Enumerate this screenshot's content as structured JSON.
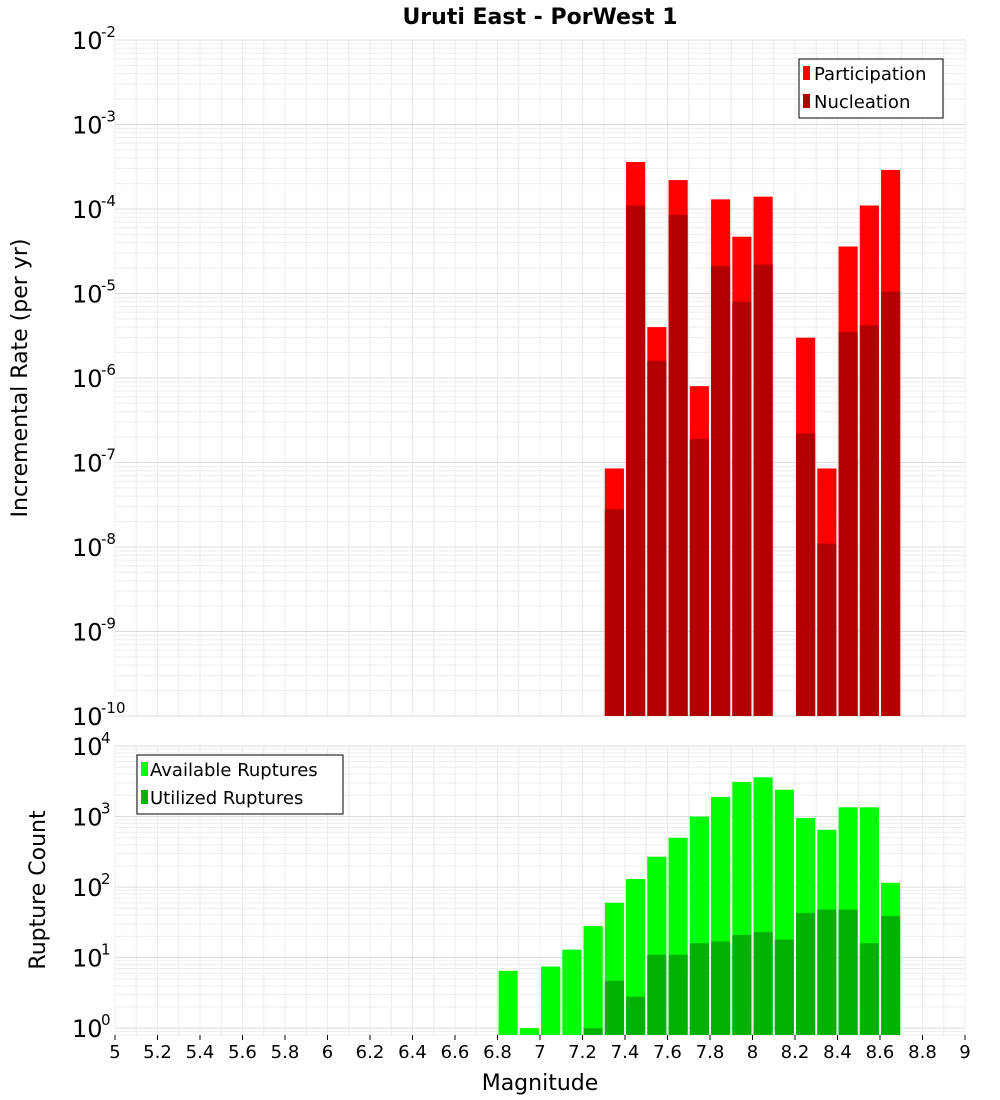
{
  "chart_data": [
    {
      "type": "bar",
      "title": "Uruti East - PorWest 1",
      "ylabel": "Incremental Rate (per yr)",
      "xlabel": "",
      "yscale": "log",
      "ylim": [
        1e-10,
        0.01
      ],
      "xlim": [
        5,
        9
      ],
      "grid": true,
      "legend_position": "top-right",
      "bar_width": 0.09,
      "series": [
        {
          "name": "Participation",
          "color": "#ff0000",
          "x": [
            7.35,
            7.45,
            7.55,
            7.65,
            7.75,
            7.85,
            7.95,
            8.05,
            8.25,
            8.35,
            8.45,
            8.55,
            8.65
          ],
          "values": [
            8.5e-08,
            0.00036,
            4e-06,
            0.00022,
            8e-07,
            0.00013,
            4.7e-05,
            0.00014,
            3e-06,
            8.5e-08,
            3.6e-05,
            0.00011,
            0.00029
          ]
        },
        {
          "name": "Nucleation",
          "color": "#b20000",
          "x": [
            7.35,
            7.45,
            7.55,
            7.65,
            7.75,
            7.85,
            7.95,
            8.05,
            8.25,
            8.35,
            8.45,
            8.55,
            8.65
          ],
          "values": [
            2.8e-08,
            0.00011,
            1.6e-06,
            8.5e-05,
            1.9e-07,
            2.1e-05,
            8e-06,
            2.2e-05,
            2.2e-07,
            1.1e-08,
            3.5e-06,
            4.2e-06,
            1.05e-05
          ]
        }
      ],
      "y_ticks": [
        {
          "base": "10",
          "exp": "-2",
          "value": 0.01
        },
        {
          "base": "10",
          "exp": "-3",
          "value": 0.001
        },
        {
          "base": "10",
          "exp": "-4",
          "value": 0.0001
        },
        {
          "base": "10",
          "exp": "-5",
          "value": 1e-05
        },
        {
          "base": "10",
          "exp": "-6",
          "value": 1e-06
        },
        {
          "base": "10",
          "exp": "-7",
          "value": 1e-07
        },
        {
          "base": "10",
          "exp": "-8",
          "value": 1e-08
        },
        {
          "base": "10",
          "exp": "-9",
          "value": 1e-09
        },
        {
          "base": "10",
          "exp": "-10",
          "value": 1e-10
        }
      ]
    },
    {
      "type": "bar",
      "title": "",
      "ylabel": "Rupture Count",
      "xlabel": "Magnitude",
      "yscale": "log",
      "ylim": [
        0.8,
        10000
      ],
      "xlim": [
        5,
        9
      ],
      "grid": true,
      "legend_position": "top-left",
      "bar_width": 0.09,
      "series": [
        {
          "name": "Available Ruptures",
          "color": "#00ff00",
          "x": [
            6.85,
            6.95,
            7.05,
            7.15,
            7.25,
            7.35,
            7.45,
            7.55,
            7.65,
            7.75,
            7.85,
            7.95,
            8.05,
            8.15,
            8.25,
            8.35,
            8.45,
            8.55,
            8.65
          ],
          "values": [
            6.5,
            1.0,
            7.5,
            13,
            28,
            60,
            130,
            270,
            500,
            1000,
            1900,
            3100,
            3600,
            2400,
            950,
            650,
            1350,
            1350,
            115
          ]
        },
        {
          "name": "Utilized Ruptures",
          "color": "#00b200",
          "x": [
            7.25,
            7.35,
            7.45,
            7.55,
            7.65,
            7.75,
            7.85,
            7.95,
            8.05,
            8.15,
            8.25,
            8.35,
            8.45,
            8.55,
            8.65
          ],
          "values": [
            1.0,
            4.7,
            2.8,
            11,
            11,
            16,
            17,
            21,
            23,
            18,
            43,
            48,
            48,
            16,
            39
          ]
        }
      ],
      "y_ticks": [
        {
          "base": "10",
          "exp": "4",
          "value": 10000
        },
        {
          "base": "10",
          "exp": "3",
          "value": 1000
        },
        {
          "base": "10",
          "exp": "2",
          "value": 100
        },
        {
          "base": "10",
          "exp": "1",
          "value": 10
        },
        {
          "base": "10",
          "exp": "0",
          "value": 1
        }
      ]
    }
  ],
  "x_ticks": [
    "5",
    "5.2",
    "5.4",
    "5.6",
    "5.8",
    "6",
    "6.2",
    "6.4",
    "6.6",
    "6.8",
    "7",
    "7.2",
    "7.4",
    "7.6",
    "7.8",
    "8",
    "8.2",
    "8.4",
    "8.6",
    "8.8",
    "9"
  ]
}
